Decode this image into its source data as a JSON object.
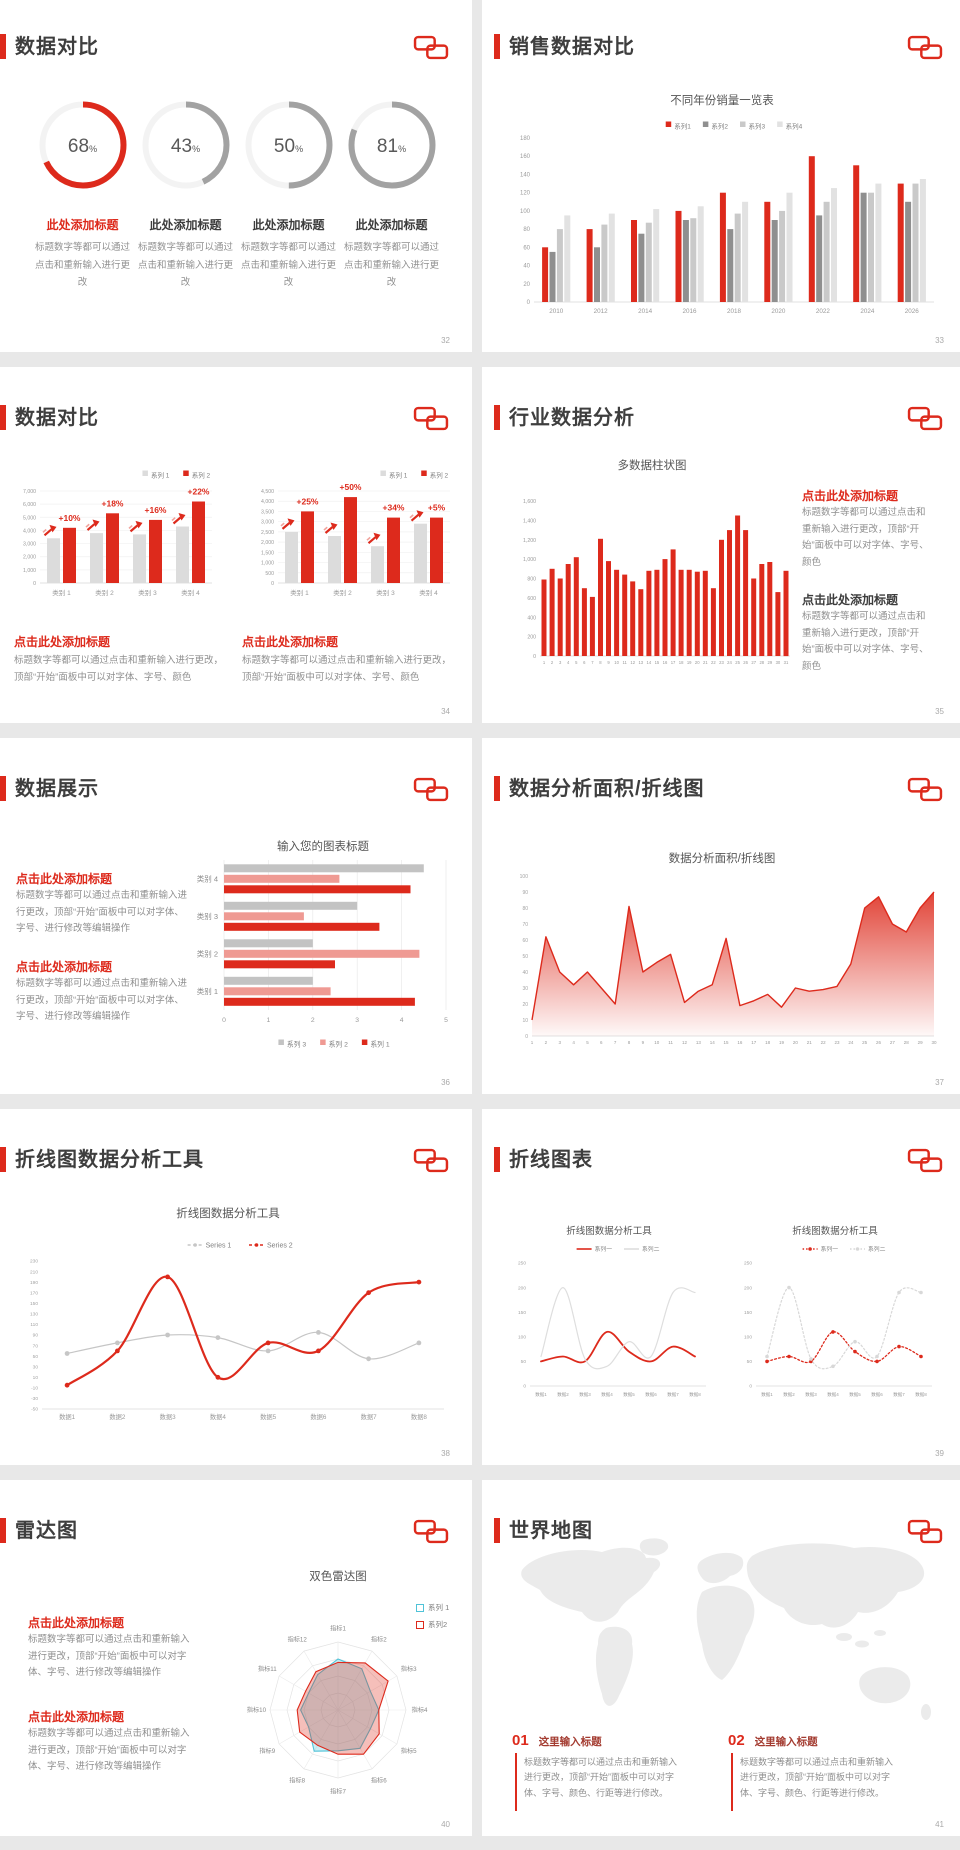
{
  "brand": {
    "accent_red": "#dd2a1c",
    "logo": "chinese-knot"
  },
  "text_snippets": {
    "add_title_click": "点击此处添加标题",
    "add_title_here": "此处添加标题"
  },
  "slides": {
    "s32": {
      "page": "32",
      "title": "数据对比",
      "items": [
        {
          "value": "68",
          "unit": "%",
          "heading": "此处添加标题",
          "body": "标题数字等都可以通过点击和重新输入进行更改"
        },
        {
          "value": "43",
          "unit": "%",
          "heading": "此处添加标题",
          "body": "标题数字等都可以通过点击和重新输入进行更改"
        },
        {
          "value": "50",
          "unit": "%",
          "heading": "此处添加标题",
          "body": "标题数字等都可以通过点击和重新输入进行更改"
        },
        {
          "value": "81",
          "unit": "%",
          "heading": "此处添加标题",
          "body": "标题数字等都可以通过点击和重新输入进行更改"
        }
      ]
    },
    "s33": {
      "page": "33",
      "title": "销售数据对比"
    },
    "s34": {
      "page": "34",
      "title": "数据对比",
      "blocks": [
        {
          "heading": "点击此处添加标题",
          "body": "标题数字等都可以通过点击和重新输入进行更改，顶部“开始”面板中可以对字体、字号、颜色"
        },
        {
          "heading": "点击此处添加标题",
          "body": "标题数字等都可以通过点击和重新输入进行更改，顶部“开始”面板中可以对字体、字号、颜色"
        }
      ]
    },
    "s35": {
      "page": "35",
      "title": "行业数据分析",
      "blocks": [
        {
          "heading": "点击此处添加标题",
          "body": "标题数字等都可以通过点击和重新输入进行更改，顶部“开始”面板中可以对字体、字号、颜色"
        },
        {
          "heading": "点击此处添加标题",
          "body": "标题数字等都可以通过点击和重新输入进行更改，顶部“开始”面板中可以对字体、字号、颜色"
        }
      ]
    },
    "s36": {
      "page": "36",
      "title": "数据展示",
      "blocks": [
        {
          "heading": "点击此处添加标题",
          "body": "标题数字等都可以通过点击和重新输入进行更改，顶部“开始”面板中可以对字体、字号、进行修改等编辑操作"
        },
        {
          "heading": "点击此处添加标题",
          "body": "标题数字等都可以通过点击和重新输入进行更改，顶部“开始”面板中可以对字体、字号、进行修改等编辑操作"
        }
      ]
    },
    "s37": {
      "page": "37",
      "title": "数据分析面积/折线图"
    },
    "s38": {
      "page": "38",
      "title": "折线图数据分析工具"
    },
    "s39": {
      "page": "39",
      "title": "折线图表"
    },
    "s40": {
      "page": "40",
      "title": "雷达图",
      "blocks": [
        {
          "heading": "点击此处添加标题",
          "body": "标题数字等都可以通过点击和重新输入进行更改，顶部“开始”面板中可以对字体、字号、进行修改等编辑操作"
        },
        {
          "heading": "点击此处添加标题",
          "body": "标题数字等都可以通过点击和重新输入进行更改，顶部“开始”面板中可以对字体、字号、进行修改等编辑操作"
        }
      ]
    },
    "s41": {
      "page": "41",
      "title": "世界地图",
      "blocks": [
        {
          "number": "01",
          "heading": "这里输入标题",
          "body": "标题数字等都可以通过点击和重新输入进行更改，顶部“开始”面板中可以对字体、字号、颜色、行距等进行修改。"
        },
        {
          "number": "02",
          "heading": "这里输入标题",
          "body": "标题数字等都可以通过点击和重新输入进行更改，顶部“开始”面板中可以对字体、字号、颜色、行距等进行修改。"
        }
      ]
    }
  },
  "chart_data": [
    {
      "id": "donuts",
      "type": "pie",
      "style": "donut-gauges",
      "values": [
        68,
        43,
        50,
        81
      ],
      "colors": [
        "#dd2a1c",
        "#a2a2a2",
        "#a2a2a2",
        "#a2a2a2"
      ]
    },
    {
      "id": "sales",
      "type": "bar",
      "title": "不同年份销量一览表",
      "categories": [
        "2010",
        "2012",
        "2014",
        "2016",
        "2018",
        "2020",
        "2022",
        "2024",
        "2026"
      ],
      "series": [
        {
          "name": "系列1",
          "color": "#dd2a1c",
          "values": [
            60,
            80,
            90,
            100,
            120,
            110,
            160,
            150,
            130
          ]
        },
        {
          "name": "系列2",
          "color": "#8f8f8f",
          "values": [
            55,
            60,
            75,
            90,
            80,
            90,
            95,
            120,
            110
          ]
        },
        {
          "name": "系列3",
          "color": "#c9c9c9",
          "values": [
            80,
            85,
            87,
            92,
            97,
            100,
            110,
            120,
            130
          ]
        },
        {
          "name": "系列4",
          "color": "#e2e2e2",
          "values": [
            95,
            97,
            102,
            105,
            110,
            120,
            125,
            130,
            135
          ]
        }
      ],
      "ylim": [
        0,
        180
      ],
      "ytick": 20,
      "legend_position": "top"
    },
    {
      "id": "compareA",
      "type": "bar",
      "categories": [
        "类别 1",
        "类别 2",
        "类别 3",
        "类别 4"
      ],
      "series": [
        {
          "name": "系列 1",
          "color": "#dcdcdc",
          "values": [
            3400,
            3800,
            3700,
            4300
          ]
        },
        {
          "name": "系列 2",
          "color": "#dd2a1c",
          "values": [
            4200,
            5300,
            4800,
            6200
          ]
        }
      ],
      "point_labels": [
        "+10%",
        "+18%",
        "+16%",
        "+22%"
      ],
      "ylim": [
        0,
        7000
      ],
      "ytick": 1000,
      "legend_position": "top-right",
      "grid": true
    },
    {
      "id": "compareB",
      "type": "bar",
      "categories": [
        "类别 1",
        "类别 2",
        "类别 3",
        "类别 4"
      ],
      "series": [
        {
          "name": "系列 1",
          "color": "#dcdcdc",
          "values": [
            2500,
            2300,
            1800,
            2900
          ]
        },
        {
          "name": "系列 2",
          "color": "#dd2a1c",
          "values": [
            3500,
            4200,
            3200,
            3200
          ]
        }
      ],
      "point_labels": [
        "+25%",
        "+50%",
        "+34%",
        "+5%"
      ],
      "ylim": [
        0,
        4500
      ],
      "ytick": 500,
      "legend_position": "top-right",
      "grid": true
    },
    {
      "id": "industry",
      "type": "bar",
      "title": "多数据柱状图",
      "categories": [
        "1",
        "2",
        "3",
        "4",
        "5",
        "6",
        "7",
        "8",
        "9",
        "10",
        "11",
        "12",
        "13",
        "14",
        "15",
        "16",
        "17",
        "18",
        "19",
        "20",
        "21",
        "22",
        "23",
        "24",
        "25",
        "26",
        "27",
        "28",
        "29",
        "30",
        "31"
      ],
      "series": [
        {
          "name": "",
          "color": "#dd2a1c",
          "values": [
            790,
            900,
            800,
            950,
            1020,
            700,
            610,
            1210,
            980,
            890,
            840,
            770,
            690,
            880,
            890,
            1000,
            1100,
            890,
            890,
            870,
            880,
            700,
            1200,
            1300,
            1450,
            1300,
            800,
            950,
            970,
            660,
            880
          ]
        }
      ],
      "ylim": [
        0,
        1600
      ],
      "ytick": 200
    },
    {
      "id": "hbar",
      "type": "bar",
      "orientation": "horizontal",
      "title": "输入您的图表标题",
      "categories": [
        "类别 4",
        "类别 3",
        "类别 2",
        "类别 1"
      ],
      "series": [
        {
          "name": "系列 3",
          "color": "#c3c3c3",
          "values": [
            4.5,
            3.0,
            2.0,
            2.0
          ]
        },
        {
          "name": "系列 2",
          "color": "#ef9a93",
          "values": [
            2.6,
            1.8,
            4.4,
            2.4
          ]
        },
        {
          "name": "系列 1",
          "color": "#dd2a1c",
          "values": [
            4.2,
            3.5,
            2.5,
            4.3
          ]
        }
      ],
      "xlim": [
        0,
        5
      ],
      "xtick": 1,
      "legend_position": "bottom",
      "grid": true
    },
    {
      "id": "area",
      "type": "area",
      "title": "数据分析面积/折线图",
      "x": [
        "1",
        "2",
        "3",
        "4",
        "5",
        "6",
        "7",
        "8",
        "9",
        "10",
        "11",
        "12",
        "13",
        "14",
        "15",
        "16",
        "17",
        "18",
        "19",
        "20",
        "21",
        "22",
        "23",
        "24",
        "25",
        "26",
        "27",
        "28",
        "29",
        "30"
      ],
      "values": [
        10,
        62,
        40,
        32,
        40,
        30,
        20,
        81,
        40,
        46,
        51,
        21,
        28,
        32,
        61,
        19,
        22,
        26,
        18,
        30,
        28,
        29,
        31,
        45,
        80,
        87,
        70,
        65,
        80,
        90
      ],
      "color": "#dd2a1c",
      "fill": "red-gradient",
      "ylim": [
        0,
        100
      ],
      "ytick": 10
    },
    {
      "id": "lines8",
      "type": "line",
      "title": "折线图数据分析工具",
      "categories": [
        "数据1",
        "数据2",
        "数据3",
        "数据4",
        "数据5",
        "数据6",
        "数据7",
        "数据8"
      ],
      "series": [
        {
          "name": "Series 1",
          "color": "#c6c6c6",
          "values": [
            55,
            75,
            90,
            85,
            60,
            95,
            45,
            75
          ]
        },
        {
          "name": "Series 2",
          "color": "#dd2a1c",
          "values": [
            -5,
            60,
            200,
            10,
            75,
            60,
            170,
            190
          ]
        }
      ],
      "ylim": [
        -50,
        230
      ],
      "ytick": 20,
      "legend_position": "top"
    },
    {
      "id": "mini1",
      "type": "line",
      "title": "折线图数据分析工具",
      "categories": [
        "数据1",
        "数据2",
        "数据3",
        "数据4",
        "数据5",
        "数据6",
        "数据7",
        "数据8"
      ],
      "series": [
        {
          "name": "系列一",
          "color": "#dd2a1c",
          "values": [
            50,
            60,
            50,
            110,
            70,
            50,
            80,
            60
          ]
        },
        {
          "name": "系列二",
          "color": "#dedede",
          "values": [
            60,
            200,
            55,
            40,
            90,
            60,
            190,
            190
          ]
        }
      ],
      "ylim": [
        0,
        250
      ],
      "ytick": 50,
      "legend_position": "top"
    },
    {
      "id": "mini2",
      "type": "line",
      "style": "dotted",
      "title": "折线图数据分析工具",
      "categories": [
        "数据1",
        "数据2",
        "数据3",
        "数据4",
        "数据5",
        "数据6",
        "数据7",
        "数据8"
      ],
      "series": [
        {
          "name": "系列一",
          "color": "#dd2a1c",
          "values": [
            50,
            60,
            50,
            110,
            70,
            50,
            80,
            60
          ]
        },
        {
          "name": "系列二",
          "color": "#d8d8d8",
          "values": [
            60,
            200,
            55,
            40,
            90,
            60,
            190,
            190
          ]
        }
      ],
      "ylim": [
        0,
        250
      ],
      "ytick": 50,
      "legend_position": "top"
    },
    {
      "id": "radar",
      "type": "radar",
      "title": "双色雷达图",
      "axes": [
        "指标1",
        "指标2",
        "指标3",
        "指标4",
        "指标5",
        "指标6",
        "指标7",
        "指标8",
        "指标9",
        "指标10",
        "指标11",
        "指标12"
      ],
      "series": [
        {
          "name": "系列 1",
          "color": "#4fc3d8",
          "values": [
            75,
            70,
            55,
            60,
            55,
            65,
            60,
            70,
            50,
            55,
            50,
            60
          ]
        },
        {
          "name": "系列2",
          "color": "#dd2a1c",
          "values": [
            70,
            80,
            85,
            60,
            70,
            75,
            65,
            60,
            65,
            60,
            55,
            65
          ]
        }
      ],
      "rmax": 100,
      "legend_position": "right"
    }
  ]
}
